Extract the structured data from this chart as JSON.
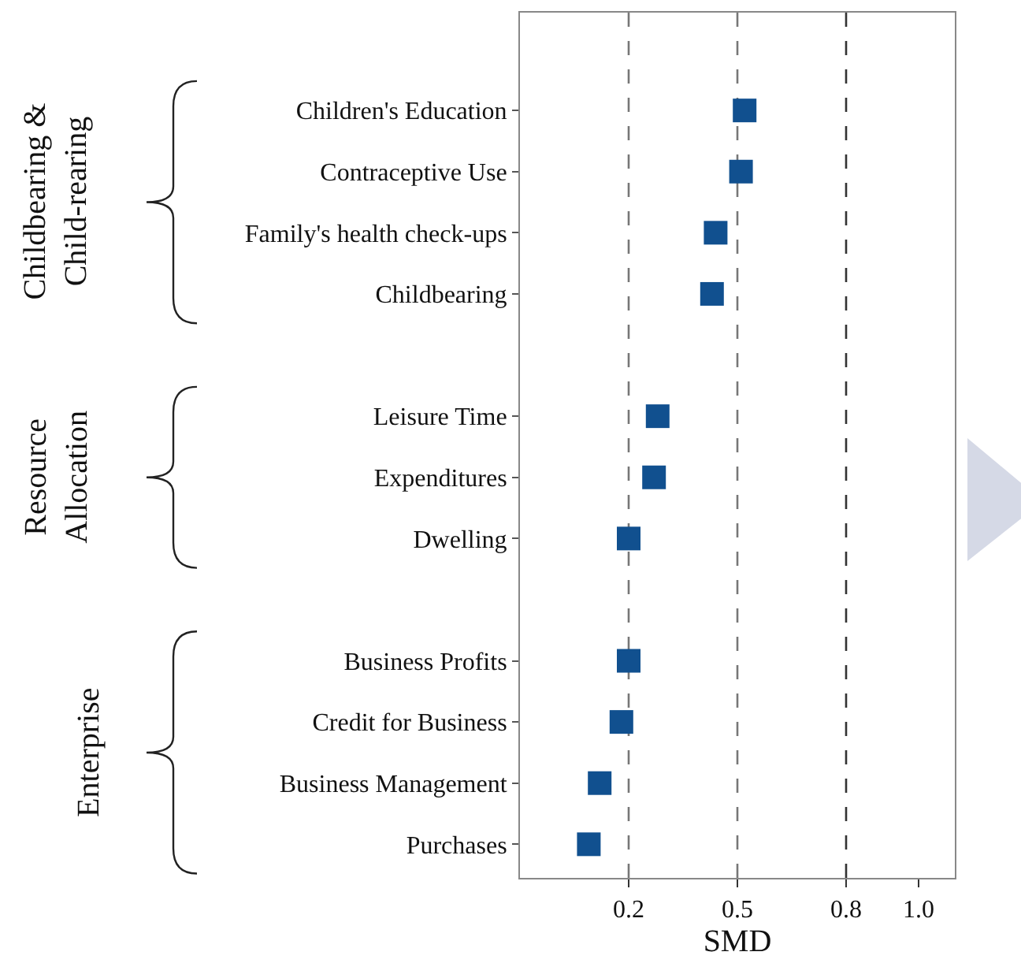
{
  "chart_data": {
    "type": "scatter",
    "orientation": "horizontal",
    "xlabel": "SMD",
    "categories": [
      "Children's Education",
      "Contraceptive Use",
      "Family's health check-ups",
      "Childbearing",
      null,
      "Leisure Time",
      "Expenditures",
      "Dwelling",
      null,
      "Business Profits",
      "Credit for Business",
      "Business Management",
      "Purchases"
    ],
    "series": [
      {
        "color": "#11508f",
        "values": [
          0.52,
          0.51,
          0.44,
          0.43,
          null,
          0.28,
          0.27,
          0.2,
          null,
          0.2,
          0.18,
          0.12,
          0.09
        ]
      }
    ],
    "xlim": [
      -0.1,
      1.1
    ],
    "xticks": [
      0.2,
      0.5,
      0.8,
      {
        "value": 1,
        "label": "1.0"
      }
    ],
    "ref_lines": [
      {
        "axis": "x",
        "value": 0.2,
        "color": "#777777",
        "line_style": "dashed"
      },
      {
        "axis": "x",
        "value": 0.5,
        "color": "#777777",
        "line_style": "dashed"
      },
      {
        "axis": "x",
        "value": 0.8,
        "color": "#333333",
        "line_style": "dashed"
      }
    ],
    "annotations": [
      "Childbearing & Child-rearing",
      "Resource Allocation",
      "Enterprise"
    ],
    "marker": "square",
    "grid": false
  }
}
